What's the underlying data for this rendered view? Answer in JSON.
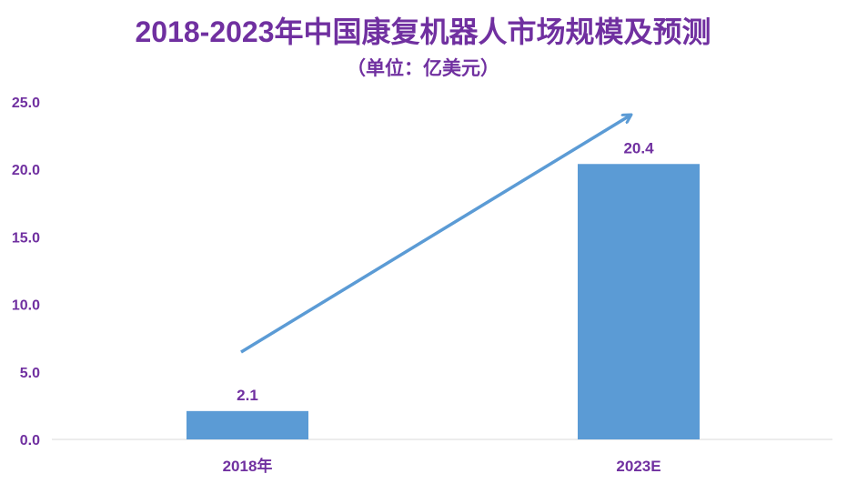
{
  "chart_data": {
    "type": "bar",
    "title": "2018-2023年中国康复机器人市场规模及预测",
    "subtitle": "（单位：亿美元）",
    "categories": [
      "2018年",
      "2023E"
    ],
    "values": [
      2.1,
      20.4
    ],
    "value_labels": [
      "2.1",
      "20.4"
    ],
    "yticks": [
      "0.0",
      "5.0",
      "10.0",
      "15.0",
      "20.0",
      "25.0"
    ],
    "ylim": [
      0,
      25
    ],
    "grid": false,
    "legend": "none",
    "trend_arrow": true,
    "colors": {
      "bar": "#5b9bd5",
      "arrow": "#5b9bd5",
      "text": "#7030a0",
      "axis": "#d9d9d9"
    }
  }
}
